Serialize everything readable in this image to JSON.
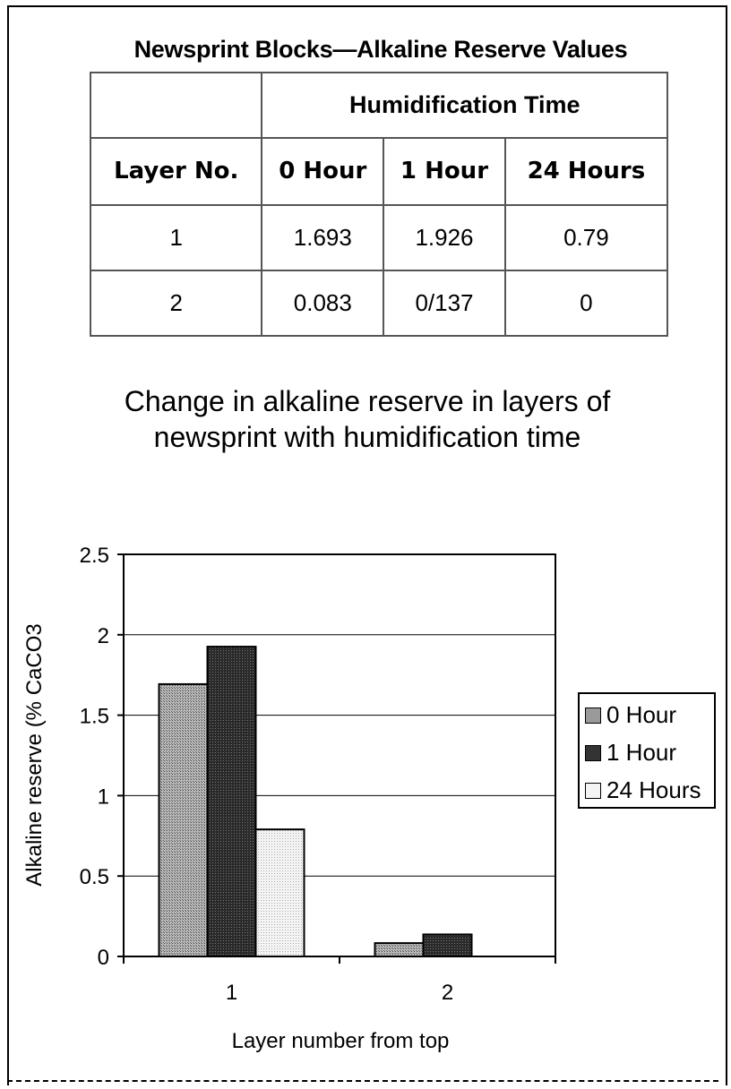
{
  "table": {
    "title": "Newsprint Blocks—Alkaline Reserve Values",
    "span_header": "Humidification Time",
    "headers": [
      "Layer No.",
      "0 Hour",
      "1 Hour",
      "24 Hours"
    ],
    "rows": [
      [
        "1",
        "1.693",
        "1.926",
        "0.79"
      ],
      [
        "2",
        "0.083",
        "0/137",
        "0"
      ]
    ]
  },
  "chart_data": {
    "type": "bar",
    "title": "Change in alkaline reserve in layers of newsprint with humidification time",
    "title_lines": [
      "Change in alkaline reserve in layers of",
      "newsprint with humidification time"
    ],
    "xlabel": "Layer number from top",
    "ylabel": "Alkaline reserve (% CaCO3",
    "categories": [
      "1",
      "2"
    ],
    "ylim": [
      0,
      2.5
    ],
    "yticks": [
      "0",
      "0.5",
      "1",
      "1.5",
      "2",
      "2.5"
    ],
    "grid": true,
    "legend_position": "right",
    "series": [
      {
        "name": "0 Hour",
        "values": [
          1.693,
          0.083
        ],
        "color": "#9a9a9a"
      },
      {
        "name": "1 Hour",
        "values": [
          1.926,
          0.137
        ],
        "color": "#333333"
      },
      {
        "name": "24 Hours",
        "values": [
          0.79,
          0
        ],
        "color": "#f0f0f0"
      }
    ]
  }
}
